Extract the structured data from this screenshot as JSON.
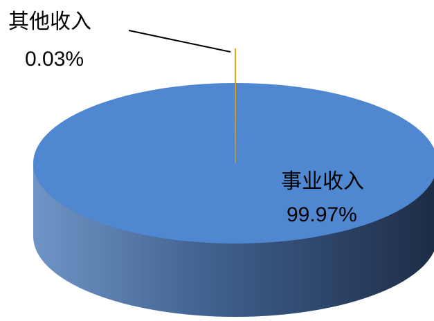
{
  "chart_data": {
    "type": "pie",
    "three_d": true,
    "slices": [
      {
        "category": "事业收入",
        "value": 99.97,
        "value_label": "99.97%",
        "color": "#4F87D0"
      },
      {
        "category": "其他收入",
        "value": 0.03,
        "value_label": "0.03%",
        "color": "#F0A30A"
      }
    ],
    "legend": "none"
  }
}
